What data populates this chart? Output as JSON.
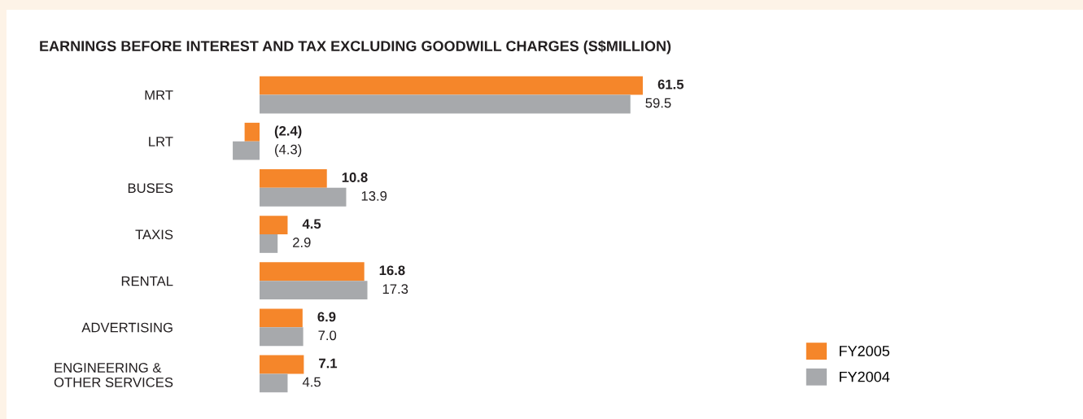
{
  "chart_data": {
    "type": "bar",
    "orientation": "horizontal",
    "title": "EARNINGS BEFORE INTEREST AND TAX EXCLUDING GOODWILL CHARGES (S$MILLION)",
    "categories": [
      "MRT",
      "LRT",
      "BUSES",
      "TAXIS",
      "RENTAL",
      "ADVERTISING",
      "ENGINEERING &\nOTHER SERVICES"
    ],
    "series": [
      {
        "name": "FY2005",
        "color": "#f5862a",
        "values": [
          61.5,
          -2.4,
          10.8,
          4.5,
          16.8,
          6.9,
          7.1
        ],
        "value_labels": [
          "61.5",
          "(2.4)",
          "10.8",
          "4.5",
          "16.8",
          "6.9",
          "7.1"
        ]
      },
      {
        "name": "FY2004",
        "color": "#a7a9ac",
        "values": [
          59.5,
          -4.3,
          13.9,
          2.9,
          17.3,
          7.0,
          4.5
        ],
        "value_labels": [
          "59.5",
          "(4.3)",
          "13.9",
          "2.9",
          "17.3",
          "7.0",
          "4.5"
        ]
      }
    ],
    "grid": false,
    "legend": "bottom right"
  }
}
